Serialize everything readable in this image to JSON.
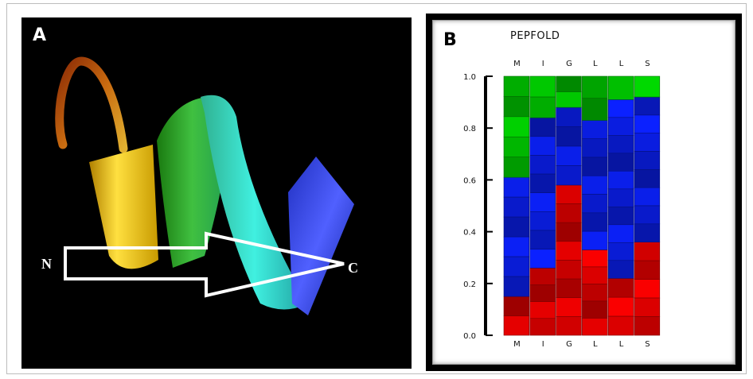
{
  "panel_a": {
    "label": "A",
    "n_terminus": "N",
    "c_terminus": "C",
    "colors": {
      "background": "#000000",
      "arrow": "#ffffff"
    }
  },
  "panel_b": {
    "label": "B",
    "title": "PEPFOLD"
  },
  "chart_data": {
    "type": "stacked-bar",
    "title": "PEPFOLD",
    "categories": [
      "M",
      "I",
      "G",
      "L",
      "L",
      "S"
    ],
    "yticks": [
      "0.0",
      "0.2",
      "0.4",
      "0.6",
      "0.8",
      "1.0"
    ],
    "ylim": [
      0,
      1
    ],
    "grid": false,
    "series": [
      {
        "color": "#e10000",
        "values": [
          0.15,
          0.26,
          0.58,
          0.33,
          0.22,
          0.36
        ]
      },
      {
        "color": "#0a1ee6",
        "values": [
          0.46,
          0.58,
          0.3,
          0.5,
          0.69,
          0.56
        ]
      },
      {
        "color": "#00c400",
        "values": [
          0.39,
          0.16,
          0.12,
          0.17,
          0.09,
          0.08
        ]
      }
    ]
  }
}
